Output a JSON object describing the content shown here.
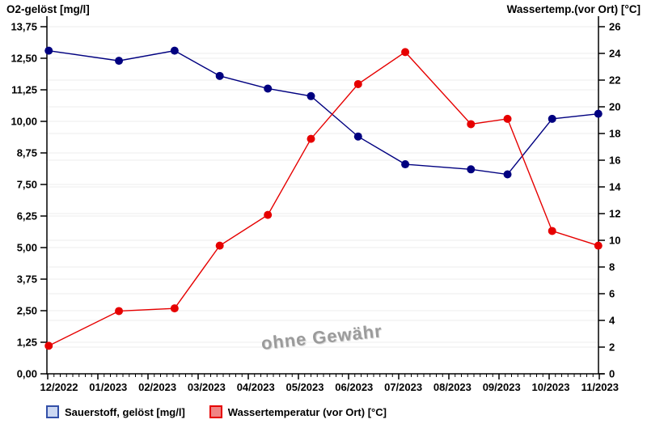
{
  "chart_data": {
    "type": "line",
    "title": "",
    "categories": [
      "12/2022",
      "01/2023",
      "02/2023",
      "03/2023",
      "04/2023",
      "05/2023",
      "06/2023",
      "07/2023",
      "08/2023",
      "09/2023",
      "10/2023",
      "11/2023"
    ],
    "x_positions_month_fraction": [
      0.02,
      1.42,
      2.53,
      3.43,
      4.39,
      5.25,
      6.19,
      7.13,
      8.44,
      9.17,
      10.06,
      10.98
    ],
    "series": [
      {
        "name": "Sauerstoff, gelöst [mg/l]",
        "axis": "left",
        "color": "#000080",
        "values": [
          12.8,
          12.4,
          12.8,
          11.8,
          11.3,
          11.0,
          9.4,
          8.3,
          8.1,
          7.9,
          10.1,
          10.3
        ]
      },
      {
        "name": "Wassertemperatur (vor Ort) [°C]",
        "axis": "right",
        "color": "#e60000",
        "values": [
          2.1,
          4.7,
          4.9,
          9.6,
          11.9,
          17.6,
          21.7,
          24.1,
          18.7,
          19.1,
          10.7,
          9.6
        ]
      }
    ],
    "left_axis": {
      "label": "O2-gelöst [mg/l]",
      "min": 0,
      "max": 13.75,
      "tick_step": 1.25,
      "tick_labels": [
        "0,00",
        "1,25",
        "2,50",
        "3,75",
        "5,00",
        "6,25",
        "7,50",
        "8,75",
        "10,00",
        "11,25",
        "12,50",
        "13,75"
      ]
    },
    "right_axis": {
      "label": "Wassertemp.(vor Ort) [°C]",
      "min": 0,
      "max": 26,
      "tick_step": 2,
      "tick_labels": [
        "0",
        "2",
        "4",
        "6",
        "8",
        "10",
        "12",
        "14",
        "16",
        "18",
        "20",
        "22",
        "24",
        "26"
      ]
    },
    "grid": true,
    "grid_color": "#ececec",
    "axis_color": "#000000",
    "legend_position": "bottom",
    "watermark": "ohne Gewähr"
  },
  "legend": {
    "items": [
      {
        "fill": "#ccd8f2",
        "border": "#3350a8"
      },
      {
        "fill": "#f08484",
        "border": "#e60000"
      }
    ]
  }
}
